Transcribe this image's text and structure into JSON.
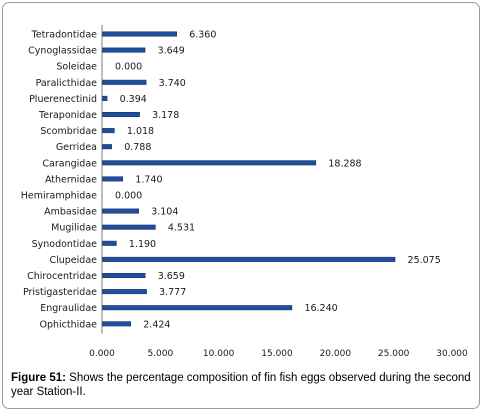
{
  "chart_data": {
    "type": "bar",
    "orientation": "horizontal",
    "categories": [
      "Tetradontidae",
      "Cynoglassidae",
      "Soleidae",
      "Paralicthidae",
      "Pluerenectinid",
      "Teraponidae",
      "Scombridae",
      "Gerridea",
      "Carangidae",
      "Athernidae",
      "Hemiramphidae",
      "Ambasidae",
      "Mugilidae",
      "Synodontidae",
      "Clupeidae",
      "Chirocentridae",
      "Pristigasteridae",
      "Engraulidae",
      "Ophicthidae"
    ],
    "values": [
      6.36,
      3.649,
      0.0,
      3.74,
      0.394,
      3.178,
      1.018,
      0.788,
      18.288,
      1.74,
      0.0,
      3.104,
      4.531,
      1.19,
      25.075,
      3.659,
      3.777,
      16.24,
      2.424
    ],
    "value_labels": [
      "6.360",
      "3.649",
      "0.000",
      "3.740",
      "0.394",
      "3.178",
      "1.018",
      "0.788",
      "18.288",
      "1.740",
      "0.000",
      "3.104",
      "4.531",
      "1.190",
      "25.075",
      "3.659",
      "3.777",
      "16.240",
      "2.424"
    ],
    "xlim": [
      0,
      30
    ],
    "xticks": [
      "0.000",
      "5.000",
      "10.000",
      "15.000",
      "20.000",
      "25.000",
      "30.000"
    ],
    "bar_color": "#1f4e9a",
    "grid": false,
    "legend": "none"
  },
  "caption": {
    "label": "Figure 51:",
    "text": " Shows the percentage composition of fin fish eggs observed during the second year Station-II."
  }
}
